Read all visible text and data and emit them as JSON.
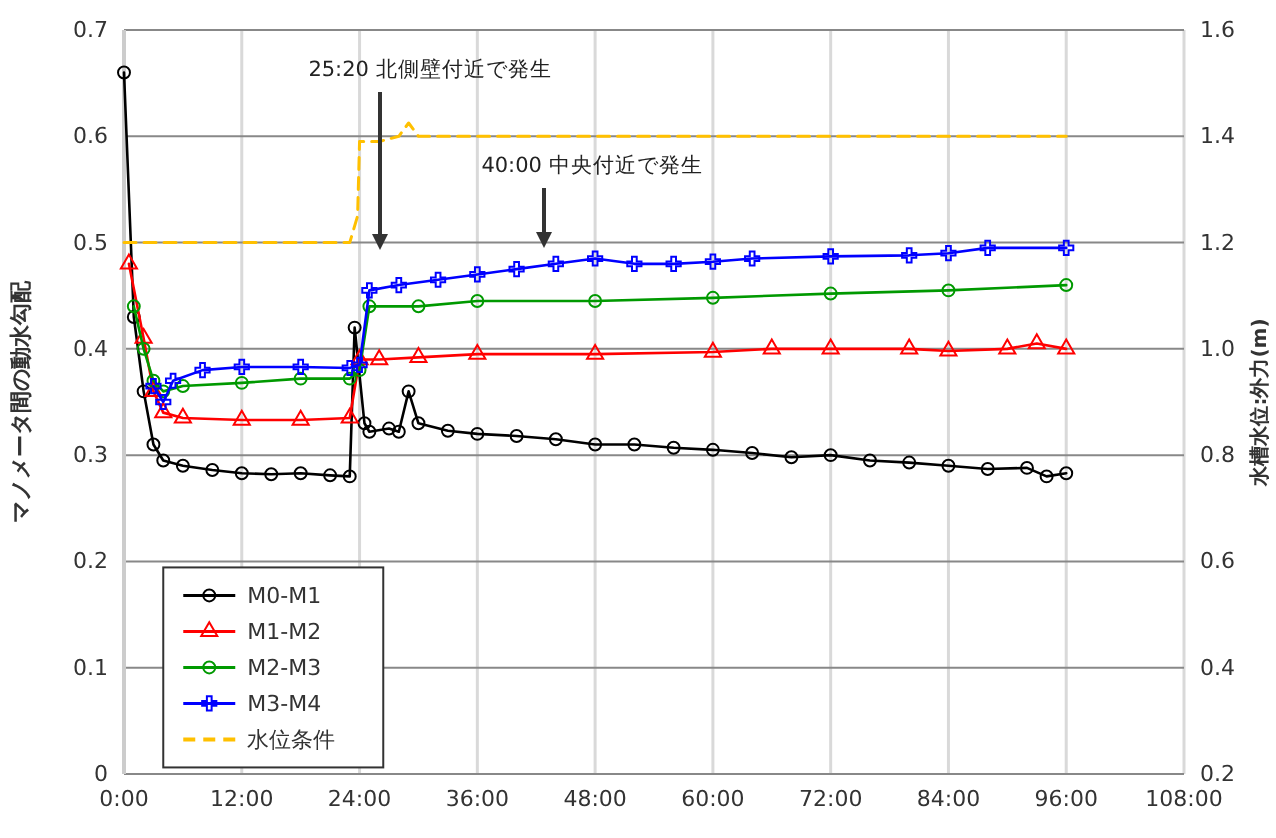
{
  "chart_data": {
    "type": "line",
    "ylabel": "マノメータ間の動水勾配",
    "y2label": "水槽水位:外力(m)",
    "xlim": [
      0,
      108
    ],
    "xticks": [
      {
        "value": 0,
        "label": "0:00"
      },
      {
        "value": 12,
        "label": "12:00"
      },
      {
        "value": 24,
        "label": "24:00"
      },
      {
        "value": 36,
        "label": "36:00"
      },
      {
        "value": 48,
        "label": "48:00"
      },
      {
        "value": 60,
        "label": "60:00"
      },
      {
        "value": 72,
        "label": "72:00"
      },
      {
        "value": 84,
        "label": "84:00"
      },
      {
        "value": 96,
        "label": "96:00"
      },
      {
        "value": 108,
        "label": "108:00"
      }
    ],
    "ylim": [
      0,
      0.7
    ],
    "yticks": [
      0,
      0.1,
      0.2,
      0.3,
      0.4,
      0.5,
      0.6,
      0.7
    ],
    "y2lim": [
      0.2,
      1.6
    ],
    "y2ticks": [
      0.2,
      0.4,
      0.6,
      0.8,
      {
        "value": 1,
        "label": "1.0"
      },
      1.2,
      1.4,
      1.6
    ],
    "grid": true,
    "legend": "bottom left",
    "series": [
      {
        "name": "M0-M1",
        "color": "#000000",
        "marker": "circle",
        "x": [
          0,
          1,
          2,
          3,
          4,
          6,
          9,
          12,
          15,
          18,
          21,
          23,
          23.5,
          24.5,
          25,
          27,
          28,
          29,
          30,
          33,
          36,
          40,
          44,
          48,
          52,
          56,
          60,
          64,
          68,
          72,
          76,
          80,
          84,
          88,
          92,
          94,
          96
        ],
        "values": [
          0.66,
          0.43,
          0.36,
          0.31,
          0.295,
          0.29,
          0.286,
          0.283,
          0.282,
          0.283,
          0.281,
          0.28,
          0.42,
          0.33,
          0.322,
          0.325,
          0.322,
          0.36,
          0.33,
          0.323,
          0.32,
          0.318,
          0.315,
          0.31,
          0.31,
          0.307,
          0.305,
          0.302,
          0.298,
          0.3,
          0.295,
          0.293,
          0.29,
          0.287,
          0.288,
          0.28,
          0.283
        ]
      },
      {
        "name": "M1-M2",
        "color": "#ff0000",
        "marker": "triangle",
        "x": [
          0.5,
          2,
          3,
          4,
          6,
          12,
          18,
          23,
          24,
          26,
          30,
          36,
          48,
          60,
          66,
          72,
          80,
          84,
          90,
          93,
          96
        ],
        "values": [
          0.48,
          0.41,
          0.36,
          0.34,
          0.335,
          0.333,
          0.333,
          0.335,
          0.39,
          0.39,
          0.392,
          0.395,
          0.395,
          0.397,
          0.4,
          0.4,
          0.4,
          0.398,
          0.4,
          0.405,
          0.4
        ]
      },
      {
        "name": "M2-M3",
        "color": "#009900",
        "marker": "circle",
        "x": [
          1,
          2,
          3,
          4,
          6,
          12,
          18,
          23,
          24,
          25,
          30,
          36,
          48,
          60,
          72,
          84,
          96
        ],
        "values": [
          0.44,
          0.4,
          0.37,
          0.36,
          0.365,
          0.368,
          0.372,
          0.372,
          0.38,
          0.44,
          0.44,
          0.445,
          0.445,
          0.448,
          0.452,
          0.455,
          0.46
        ]
      },
      {
        "name": "M3-M4",
        "color": "#0000ff",
        "marker": "cross",
        "x": [
          3,
          4,
          5,
          8,
          12,
          18,
          23,
          24,
          25,
          28,
          32,
          36,
          40,
          44,
          48,
          52,
          56,
          60,
          64,
          72,
          80,
          84,
          88,
          96
        ],
        "values": [
          0.365,
          0.35,
          0.37,
          0.38,
          0.383,
          0.383,
          0.382,
          0.385,
          0.455,
          0.46,
          0.465,
          0.47,
          0.475,
          0.48,
          0.485,
          0.48,
          0.48,
          0.482,
          0.485,
          0.487,
          0.488,
          0.49,
          0.495,
          0.495
        ]
      },
      {
        "name": "水位条件",
        "color": "#ffc000",
        "axis": "y2",
        "marker": "none",
        "line_style": "dashed",
        "x": [
          0,
          23,
          23.8,
          24,
          26,
          28,
          29,
          30,
          96
        ],
        "values": [
          1.2,
          1.2,
          1.25,
          1.39,
          1.39,
          1.4,
          1.425,
          1.4,
          1.4
        ]
      }
    ],
    "annotations": [
      "25:20 北側壁付近で発生",
      "40:00 中央付近で発生"
    ]
  }
}
